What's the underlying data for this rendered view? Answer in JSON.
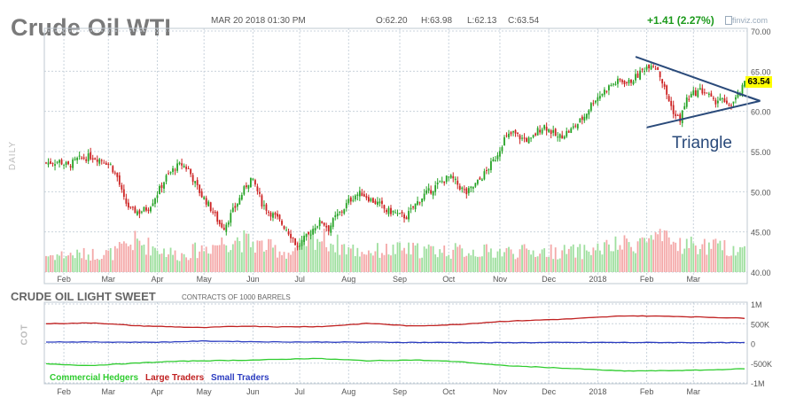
{
  "header": {
    "title": "Crude Oil WTI",
    "date": "MAR 20 2018 01:30 PM",
    "open": "O:62.20",
    "high": "H:63.98",
    "low": "L:62.13",
    "close": "C:63.54",
    "change": "+1.41 (2.27%)",
    "brand": "finviz.com"
  },
  "colors": {
    "up": "#26a326",
    "down": "#cc2222",
    "vol_up": "#9fdf9f",
    "vol_down": "#f4a8a8",
    "grid": "#c9d3dc",
    "large": "#c02020",
    "small": "#2b3cc0",
    "commercial": "#2fcc2f",
    "triangle": "#2a4a7a"
  },
  "panel_labels": {
    "daily": "DAILY",
    "cot": "COT"
  },
  "cot": {
    "title": "CRUDE OIL LIGHT SWEET",
    "note": "CONTRACTS OF 1000 BARRELS",
    "legend": [
      "Commercial Hedgers",
      "Large Traders",
      "Small Traders"
    ]
  },
  "price_tag": "63.54",
  "pattern_label": "Triangle",
  "chart_data": [
    {
      "type": "candlestick",
      "title": "Crude Oil WTI",
      "ylim": [
        40,
        70
      ],
      "y_ticks": [
        "70.00",
        "65.00",
        "60.00",
        "55.00",
        "50.00",
        "45.00",
        "40.00"
      ],
      "y_tick_values": [
        70,
        65,
        60,
        55,
        50,
        45,
        40
      ],
      "x_ticks": [
        "Feb",
        "Mar",
        "Apr",
        "May",
        "Jun",
        "Jul",
        "Aug",
        "Sep",
        "Oct",
        "Nov",
        "Dec",
        "2018",
        "Feb",
        "Mar"
      ],
      "x_tick_index": [
        8,
        28,
        50,
        71,
        93,
        114,
        136,
        159,
        181,
        204,
        226,
        248,
        270,
        291
      ],
      "close_path": [
        [
          0,
          53.6
        ],
        [
          6,
          53.8
        ],
        [
          10,
          53.2
        ],
        [
          14,
          54.0
        ],
        [
          20,
          54.4
        ],
        [
          26,
          53.9
        ],
        [
          29,
          53.3
        ],
        [
          32,
          51.8
        ],
        [
          35,
          49.0
        ],
        [
          38,
          47.7
        ],
        [
          42,
          47.5
        ],
        [
          46,
          48.0
        ],
        [
          50,
          49.8
        ],
        [
          54,
          51.8
        ],
        [
          58,
          53.0
        ],
        [
          61,
          53.4
        ],
        [
          64,
          52.8
        ],
        [
          67,
          51.0
        ],
        [
          70,
          49.5
        ],
        [
          72,
          48.8
        ],
        [
          75,
          47.5
        ],
        [
          78,
          46.0
        ],
        [
          80,
          45.6
        ],
        [
          82,
          46.6
        ],
        [
          86,
          48.6
        ],
        [
          90,
          50.8
        ],
        [
          92,
          51.6
        ],
        [
          94,
          50.8
        ],
        [
          97,
          48.6
        ],
        [
          100,
          47.6
        ],
        [
          104,
          46.6
        ],
        [
          108,
          45.4
        ],
        [
          111,
          44.2
        ],
        [
          113,
          43.0
        ],
        [
          115,
          43.8
        ],
        [
          118,
          44.6
        ],
        [
          121,
          45.8
        ],
        [
          124,
          46.3
        ],
        [
          127,
          45.4
        ],
        [
          130,
          46.8
        ],
        [
          133,
          47.6
        ],
        [
          136,
          48.8
        ],
        [
          139,
          49.6
        ],
        [
          142,
          49.8
        ],
        [
          146,
          49.0
        ],
        [
          150,
          48.4
        ],
        [
          153,
          47.6
        ],
        [
          156,
          47.5
        ],
        [
          159,
          47.0
        ],
        [
          162,
          46.9
        ],
        [
          166,
          48.4
        ],
        [
          170,
          49.6
        ],
        [
          174,
          50.4
        ],
        [
          178,
          51.3
        ],
        [
          181,
          51.8
        ],
        [
          183,
          51.5
        ],
        [
          186,
          50.6
        ],
        [
          189,
          49.8
        ],
        [
          192,
          50.6
        ],
        [
          195,
          51.5
        ],
        [
          198,
          52.6
        ],
        [
          202,
          54.2
        ],
        [
          206,
          56.6
        ],
        [
          210,
          57.3
        ],
        [
          214,
          56.6
        ],
        [
          218,
          56.4
        ],
        [
          221,
          57.6
        ],
        [
          224,
          58.2
        ],
        [
          227,
          57.5
        ],
        [
          230,
          56.7
        ],
        [
          233,
          57.2
        ],
        [
          236,
          57.7
        ],
        [
          239,
          58.5
        ],
        [
          242,
          59.4
        ],
        [
          246,
          61.3
        ],
        [
          250,
          62.3
        ],
        [
          254,
          63.3
        ],
        [
          258,
          63.8
        ],
        [
          262,
          63.6
        ],
        [
          266,
          64.5
        ],
        [
          269,
          65.4
        ],
        [
          272,
          66.0
        ],
        [
          275,
          65.3
        ],
        [
          278,
          62.8
        ],
        [
          281,
          60.6
        ],
        [
          283,
          59.4
        ],
        [
          285,
          59.0
        ],
        [
          288,
          61.5
        ],
        [
          291,
          62.2
        ],
        [
          294,
          62.6
        ],
        [
          297,
          62.3
        ],
        [
          300,
          61.1
        ],
        [
          303,
          61.7
        ],
        [
          306,
          60.6
        ],
        [
          309,
          61.2
        ],
        [
          312,
          62.2
        ],
        [
          314,
          63.5
        ]
      ],
      "volume_envelope": [
        [
          0,
          0.45
        ],
        [
          30,
          0.5
        ],
        [
          40,
          0.82
        ],
        [
          60,
          0.45
        ],
        [
          85,
          0.9
        ],
        [
          110,
          0.5
        ],
        [
          120,
          0.98
        ],
        [
          140,
          0.55
        ],
        [
          160,
          0.6
        ],
        [
          200,
          0.55
        ],
        [
          240,
          0.55
        ],
        [
          262,
          0.75
        ],
        [
          272,
          0.9
        ],
        [
          285,
          0.75
        ],
        [
          314,
          0.6
        ]
      ],
      "annotations": {
        "triangle_upper": [
          [
            265,
            66.8
          ],
          [
            312,
            62.3
          ]
        ],
        "triangle_lower": [
          [
            270,
            58.0
          ],
          [
            312,
            60.9
          ]
        ],
        "triangle_apex": [
          317,
          61.3
        ],
        "label": "Triangle"
      },
      "last_value": 63.54
    },
    {
      "type": "line",
      "title": "CRUDE OIL LIGHT SWEET",
      "ylim": [
        -1000,
        1000
      ],
      "y_ticks": [
        "1M",
        "500K",
        "0",
        "-500K",
        "-1M"
      ],
      "y_tick_values": [
        1000,
        500,
        0,
        -500,
        -1000
      ],
      "x_ticks": [
        "Feb",
        "Mar",
        "Apr",
        "May",
        "Jun",
        "Jul",
        "Aug",
        "Sep",
        "Oct",
        "Nov",
        "Dec",
        "2018",
        "Feb",
        "Mar"
      ],
      "series": [
        {
          "name": "Large Traders",
          "color": "#c02020",
          "points": [
            [
              0,
              500
            ],
            [
              22,
              520
            ],
            [
              40,
              450
            ],
            [
              70,
              400
            ],
            [
              90,
              440
            ],
            [
              105,
              420
            ],
            [
              125,
              430
            ],
            [
              145,
              510
            ],
            [
              165,
              440
            ],
            [
              185,
              480
            ],
            [
              205,
              560
            ],
            [
              235,
              620
            ],
            [
              260,
              700
            ],
            [
              280,
              690
            ],
            [
              300,
              660
            ],
            [
              314,
              640
            ]
          ]
        },
        {
          "name": "Small Traders",
          "color": "#2b3cc0",
          "points": [
            [
              0,
              40
            ],
            [
              50,
              30
            ],
            [
              70,
              60
            ],
            [
              100,
              40
            ],
            [
              150,
              30
            ],
            [
              200,
              20
            ],
            [
              250,
              25
            ],
            [
              314,
              20
            ]
          ]
        },
        {
          "name": "Commercial Hedgers",
          "color": "#2fcc2f",
          "points": [
            [
              0,
              -520
            ],
            [
              20,
              -560
            ],
            [
              40,
              -500
            ],
            [
              55,
              -460
            ],
            [
              70,
              -440
            ],
            [
              95,
              -420
            ],
            [
              120,
              -380
            ],
            [
              145,
              -440
            ],
            [
              165,
              -420
            ],
            [
              185,
              -460
            ],
            [
              205,
              -560
            ],
            [
              230,
              -620
            ],
            [
              260,
              -700
            ],
            [
              280,
              -690
            ],
            [
              300,
              -670
            ],
            [
              314,
              -640
            ]
          ]
        }
      ]
    }
  ]
}
